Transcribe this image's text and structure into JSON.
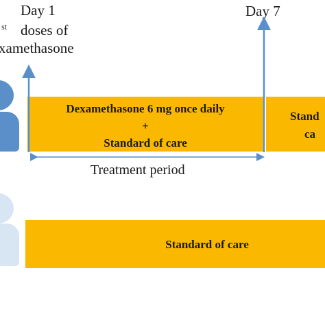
{
  "day_labels": {
    "day1": "Day 1",
    "day7": "Day 7"
  },
  "first_dose_note": {
    "superscript": "st",
    "line1": "doses of",
    "line2": "xamethasone"
  },
  "treatment_arm": {
    "line1": "Dexamethasone 6 mg once daily",
    "line2": "+",
    "line3": "Standard of care"
  },
  "post_treatment": {
    "line1": "Stand",
    "line2": "ca"
  },
  "treatment_period": "Treatment period",
  "control_arm": "Standard of care",
  "colors": {
    "bar": "#fbb800",
    "arrow": "#5b8fc9",
    "person_dark": "#5b8fc9",
    "person_light": "#d8e6f4"
  },
  "icons": {
    "treatment_person": "person-icon",
    "control_person": "person-icon"
  }
}
